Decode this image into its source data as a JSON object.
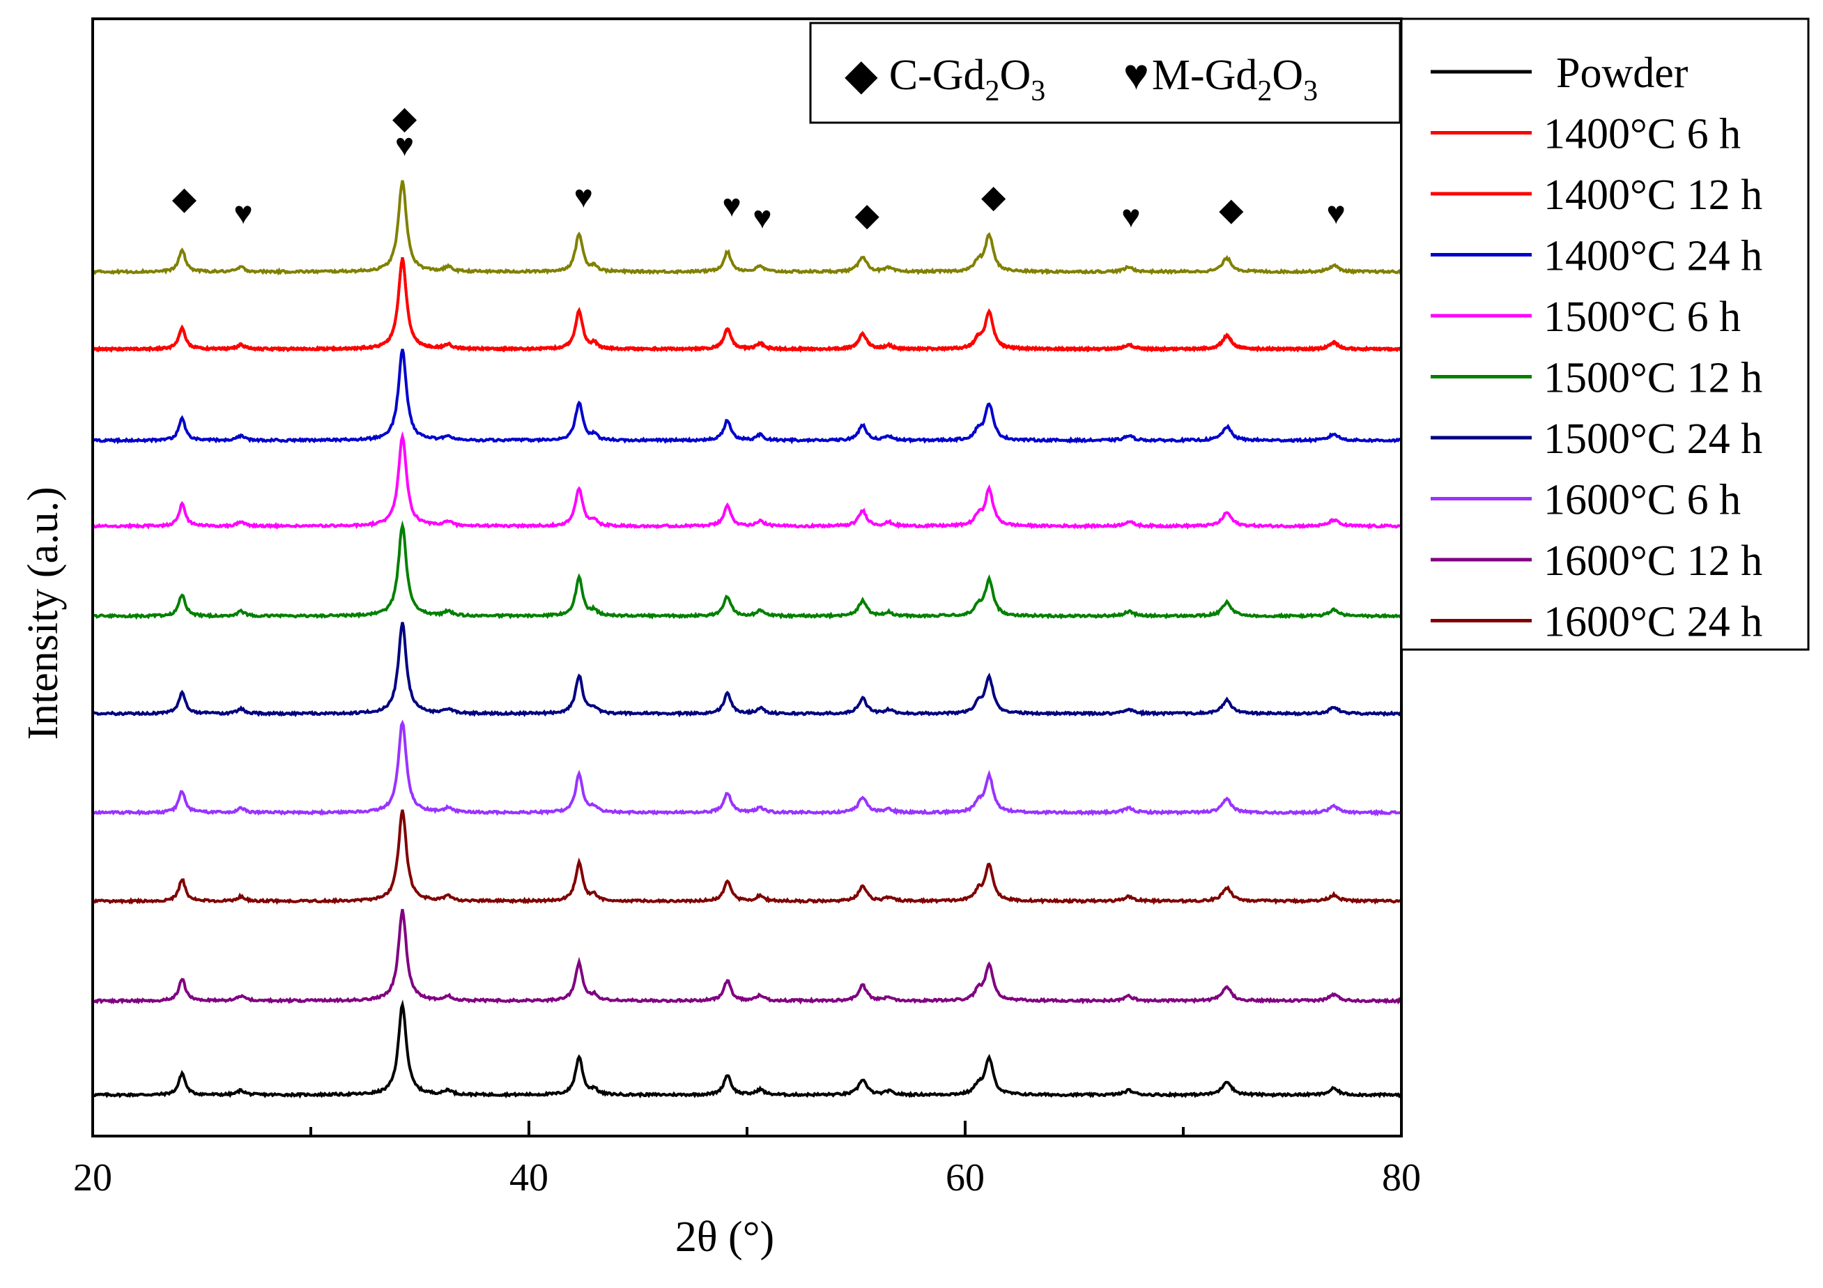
{
  "chart_data": {
    "type": "line",
    "title": "",
    "xlabel": "2θ (°)",
    "ylabel": "Intensity (a.u.)",
    "xlim": [
      20,
      80
    ],
    "xticks": [
      20,
      40,
      60,
      80
    ],
    "yticks_shown": false,
    "legend_position": "right-outside, top",
    "phase_legend": {
      "position": "top-right inside",
      "items": [
        {
          "symbol": "◆",
          "name": "diamond-icon",
          "prefix": "C-Gd",
          "sub1": "2",
          "mid": "O",
          "sub2": "3",
          "label": "C-Gd2O3"
        },
        {
          "symbol": "♥",
          "name": "heart-icon",
          "prefix": "M-Gd",
          "sub1": "2",
          "mid": "O",
          "sub2": "3",
          "label": "M-Gd2O3"
        }
      ]
    },
    "peak_markers": [
      {
        "x": 24.2,
        "symbol": "◆",
        "y_rel": 0.46
      },
      {
        "x": 26.9,
        "symbol": "♥",
        "y_rel": 0.3
      },
      {
        "x": 34.3,
        "symbol": "♥",
        "y_rel": 1.05
      },
      {
        "x": 34.3,
        "symbol": "◆",
        "y_rel": 1.35
      },
      {
        "x": 42.5,
        "symbol": "♥",
        "y_rel": 0.48
      },
      {
        "x": 49.3,
        "symbol": "♥",
        "y_rel": 0.38
      },
      {
        "x": 50.7,
        "symbol": "♥",
        "y_rel": 0.25
      },
      {
        "x": 55.5,
        "symbol": "◆",
        "y_rel": 0.28
      },
      {
        "x": 61.3,
        "symbol": "◆",
        "y_rel": 0.48
      },
      {
        "x": 67.6,
        "symbol": "♥",
        "y_rel": 0.26
      },
      {
        "x": 72.2,
        "symbol": "◆",
        "y_rel": 0.34
      },
      {
        "x": 77.0,
        "symbol": "♥",
        "y_rel": 0.3
      }
    ],
    "peaks": [
      {
        "x": 24.1,
        "height": 0.24,
        "width": 0.18
      },
      {
        "x": 26.8,
        "height": 0.05,
        "width": 0.2
      },
      {
        "x": 34.2,
        "height": 1.0,
        "width": 0.22
      },
      {
        "x": 36.3,
        "height": 0.05,
        "width": 0.2
      },
      {
        "x": 42.3,
        "height": 0.42,
        "width": 0.2
      },
      {
        "x": 43.0,
        "height": 0.06,
        "width": 0.15
      },
      {
        "x": 49.1,
        "height": 0.22,
        "width": 0.2
      },
      {
        "x": 50.6,
        "height": 0.06,
        "width": 0.2
      },
      {
        "x": 55.3,
        "height": 0.17,
        "width": 0.22
      },
      {
        "x": 56.5,
        "height": 0.04,
        "width": 0.2
      },
      {
        "x": 60.6,
        "height": 0.1,
        "width": 0.2
      },
      {
        "x": 61.1,
        "height": 0.4,
        "width": 0.22
      },
      {
        "x": 67.5,
        "height": 0.05,
        "width": 0.25
      },
      {
        "x": 72.0,
        "height": 0.15,
        "width": 0.25
      },
      {
        "x": 76.9,
        "height": 0.07,
        "width": 0.25
      }
    ],
    "series": [
      {
        "name": "Powder",
        "color": "#000000",
        "offset_rank": 0
      },
      {
        "name": "1400°C 6 h",
        "color": "#ff0000",
        "offset_rank": 8
      },
      {
        "name": "1400°C 12 h",
        "color": "#ff0000",
        "offset_rank": 9
      },
      {
        "name": "1400°C 24 h",
        "color": "#0000cc",
        "offset_rank": 7
      },
      {
        "name": "1500°C 6 h",
        "color": "#ff00ff",
        "offset_rank": 6
      },
      {
        "name": "1500°C 12 h",
        "color": "#008000",
        "offset_rank": 5
      },
      {
        "name": "1500°C 24 h",
        "color": "#000080",
        "offset_rank": 4
      },
      {
        "name": "1600°C 6 h",
        "color": "#9933ff",
        "offset_rank": 3
      },
      {
        "name": "1600°C 12 h",
        "color": "#800080",
        "offset_rank": 1
      },
      {
        "name": "1600°C 24 h",
        "color": "#800000",
        "offset_rank": 2
      }
    ],
    "top_trace_color": "#808000"
  }
}
